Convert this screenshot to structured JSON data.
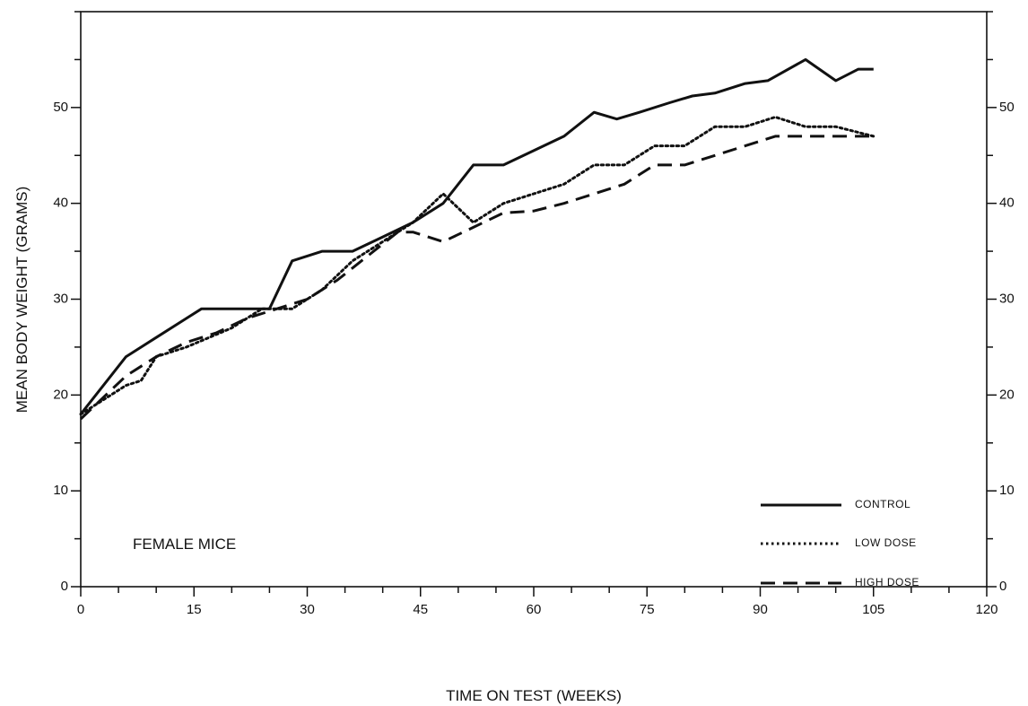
{
  "chart_data": {
    "type": "line",
    "xlabel": "TIME ON TEST (WEEKS)",
    "ylabel": "MEAN BODY WEIGHT (GRAMS)",
    "xlim": [
      0,
      120
    ],
    "ylim": [
      0,
      60
    ],
    "xticks_labeled": [
      0,
      15,
      30,
      45,
      60,
      75,
      90,
      105,
      120
    ],
    "xticks_minor_step": 5,
    "yticks_labeled": [
      0,
      10,
      20,
      30,
      40,
      50
    ],
    "yticks_minor_step": 5,
    "grid": false,
    "right_axis_mirrored": true,
    "legend_position": "bottom-right",
    "annotation": "FEMALE MICE",
    "series": [
      {
        "name": "CONTROL",
        "line_style": "solid",
        "x": [
          0,
          6,
          10,
          14,
          16,
          20,
          22,
          25,
          28,
          32,
          36,
          40,
          44,
          48,
          52,
          56,
          60,
          64,
          68,
          71,
          74,
          78,
          81,
          84,
          88,
          91,
          96,
          100,
          103,
          105
        ],
        "y": [
          18,
          24,
          26,
          28,
          29,
          29,
          29,
          29,
          34,
          35,
          35,
          36.5,
          38,
          40,
          44,
          44,
          45.5,
          47,
          49.5,
          48.8,
          49.5,
          50.5,
          51.2,
          51.5,
          52.5,
          52.8,
          55,
          52.8,
          54,
          54
        ]
      },
      {
        "name": "LOW DOSE",
        "line_style": "dotted",
        "x": [
          0,
          6,
          8,
          10,
          14,
          20,
          24,
          28,
          32,
          36,
          40,
          44,
          48,
          52,
          56,
          60,
          64,
          68,
          72,
          76,
          80,
          84,
          88,
          92,
          96,
          100,
          105
        ],
        "y": [
          18,
          21,
          21.5,
          24,
          25,
          27,
          29,
          29,
          31,
          34,
          36,
          38,
          41,
          38,
          40,
          41,
          42,
          44,
          44,
          46,
          46,
          48,
          48,
          49,
          48,
          48,
          47
        ]
      },
      {
        "name": "HIGH DOSE",
        "line_style": "dashed",
        "x": [
          0,
          6,
          10,
          14,
          18,
          22,
          26,
          30,
          34,
          38,
          42,
          44,
          48,
          52,
          56,
          60,
          64,
          68,
          72,
          76,
          80,
          84,
          88,
          92,
          96,
          100,
          105
        ],
        "y": [
          17.5,
          22,
          24,
          25.5,
          26.5,
          28,
          29,
          30,
          32,
          34.5,
          37,
          37,
          36,
          37.5,
          39,
          39.2,
          40,
          41,
          42,
          44,
          44,
          45,
          46,
          47,
          47,
          47,
          47
        ]
      }
    ]
  }
}
